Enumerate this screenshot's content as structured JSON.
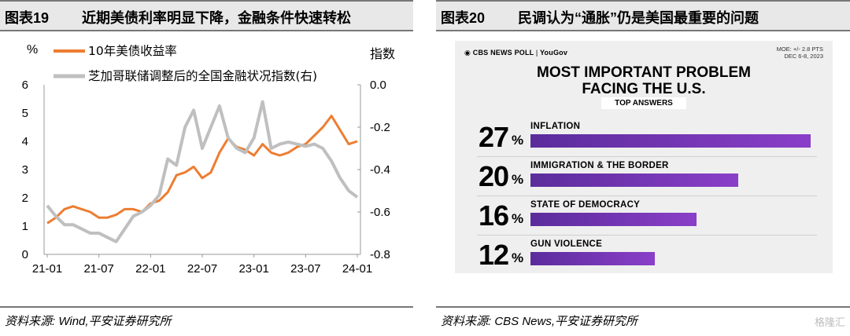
{
  "left_panel": {
    "figure_label": "图表19",
    "title": "近期美债利率明显下降，金融条件快速转松",
    "source": "资料来源: Wind,平安证券研究所"
  },
  "right_panel": {
    "figure_label": "图表20",
    "title": "民调认为“通胀”仍是美国最重要的问题",
    "source": "资料来源: CBS News,平安证券研究所"
  },
  "watermark": "格隆汇",
  "colors": {
    "orange": "#ed7d31",
    "gray": "#bfbfbf",
    "purple": "#7a36b8"
  },
  "chart_data": [
    {
      "type": "line",
      "title": "",
      "xlabel": "",
      "ylabel_left": "%",
      "ylabel_right": "指数",
      "ylim_left": [
        0,
        6
      ],
      "ylim_right": [
        -0.8,
        0.0
      ],
      "yticks_left": [
        "0",
        "1",
        "2",
        "3",
        "4",
        "5",
        "6"
      ],
      "yticks_right": [
        "-0.8",
        "-0.6",
        "-0.4",
        "-0.2",
        "0.0"
      ],
      "xticks": [
        "21-01",
        "21-07",
        "22-01",
        "22-07",
        "23-01",
        "23-07",
        "24-01"
      ],
      "x": [
        "21-01",
        "21-02",
        "21-03",
        "21-04",
        "21-05",
        "21-06",
        "21-07",
        "21-08",
        "21-09",
        "21-10",
        "21-11",
        "21-12",
        "22-01",
        "22-02",
        "22-03",
        "22-04",
        "22-05",
        "22-06",
        "22-07",
        "22-08",
        "22-09",
        "22-10",
        "22-11",
        "22-12",
        "23-01",
        "23-02",
        "23-03",
        "23-04",
        "23-05",
        "23-06",
        "23-07",
        "23-08",
        "23-09",
        "23-10",
        "23-11",
        "23-12",
        "24-01"
      ],
      "series": [
        {
          "name": "10年美债收益率",
          "axis": "left",
          "color": "#ed7d31",
          "values": [
            1.1,
            1.3,
            1.6,
            1.7,
            1.6,
            1.5,
            1.3,
            1.3,
            1.4,
            1.6,
            1.6,
            1.5,
            1.8,
            1.9,
            2.2,
            2.8,
            2.9,
            3.1,
            2.7,
            2.9,
            3.6,
            4.1,
            3.8,
            3.7,
            3.5,
            3.9,
            3.6,
            3.5,
            3.6,
            3.8,
            3.9,
            4.2,
            4.5,
            4.9,
            4.4,
            3.9,
            4.0
          ]
        },
        {
          "name": "芝加哥联储调整后的全国金融状况指数(右)",
          "axis": "right",
          "color": "#bfbfbf",
          "values": [
            -0.57,
            -0.62,
            -0.66,
            -0.66,
            -0.68,
            -0.7,
            -0.7,
            -0.72,
            -0.74,
            -0.68,
            -0.62,
            -0.6,
            -0.57,
            -0.52,
            -0.35,
            -0.38,
            -0.2,
            -0.12,
            -0.3,
            -0.2,
            -0.1,
            -0.25,
            -0.3,
            -0.32,
            -0.25,
            -0.08,
            -0.3,
            -0.28,
            -0.27,
            -0.28,
            -0.29,
            -0.28,
            -0.3,
            -0.36,
            -0.44,
            -0.5,
            -0.53
          ]
        }
      ]
    },
    {
      "type": "bar",
      "brand": "CBS NEWS POLL",
      "partner": "YouGov",
      "moe": "MOE: +/- 2.8 PTS",
      "dates": "DEC 6-8, 2023",
      "title_line1": "MOST IMPORTANT PROBLEM",
      "title_line2": "FACING THE U.S.",
      "subtitle": "TOP ANSWERS",
      "categories": [
        "INFLATION",
        "IMMIGRATION & THE BORDER",
        "STATE OF DEMOCRACY",
        "GUN VIOLENCE"
      ],
      "values": [
        27,
        20,
        16,
        12
      ],
      "value_labels": [
        "27",
        "20",
        "16",
        "12"
      ],
      "unit": "%",
      "xlim": [
        0,
        27
      ]
    }
  ]
}
